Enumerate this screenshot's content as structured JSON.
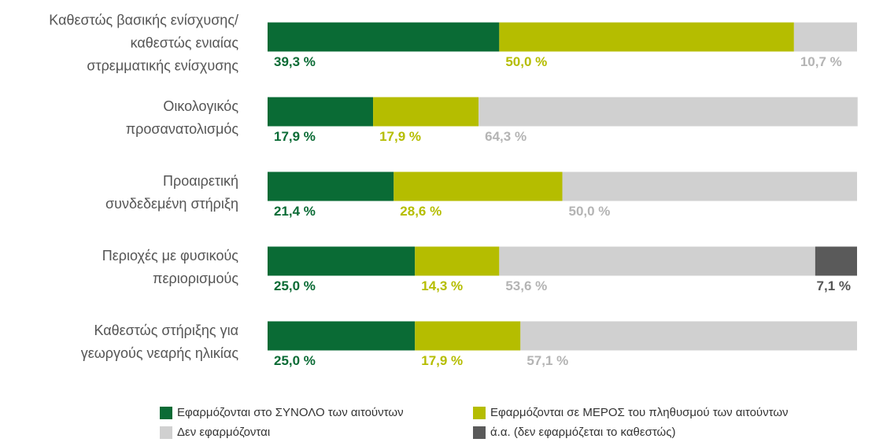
{
  "chart_data": {
    "type": "stacked_barh",
    "categories": [
      "Καθεστώς βασικής ενίσχυσης/\nκαθεστώς ενιαίας\nστρεμματικής ενίσχυσης",
      "Οικολογικός\nπροσανατολισμός",
      "Προαιρετική\nσυνδεδεμένη στήριξη",
      "Περιοχές με φυσικούς\nπεριορισμούς",
      "Καθεστώς στήριξης για\nγεωργούς νεαρής ηλικίας"
    ],
    "series": [
      {
        "name": "Εφαρμόζονται στο ΣΥΝΟΛΟ των αιτούντων",
        "color": "#0a6b35",
        "label_color": "#0a6b35",
        "values": [
          39.3,
          17.9,
          21.4,
          25.0,
          25.0
        ],
        "value_labels": [
          "39,3 %",
          "17,9 %",
          "21,4 %",
          "25,0 %",
          "25,0 %"
        ]
      },
      {
        "name": "Εφαρμόζονται σε ΜΕΡΟΣ του πληθυσμού των αιτούντων",
        "color": "#b5bd00",
        "label_color": "#b5bd00",
        "values": [
          50.0,
          17.9,
          28.6,
          14.3,
          17.9
        ],
        "value_labels": [
          "50,0 %",
          "17,9 %",
          "28,6 %",
          "14,3 %",
          "17,9 %"
        ]
      },
      {
        "name": "Δεν εφαρμόζονται",
        "color": "#d0d0d0",
        "label_color": "#b4b4b4",
        "values": [
          10.7,
          64.3,
          50.0,
          53.6,
          57.1
        ],
        "value_labels": [
          "10,7 %",
          "64,3 %",
          "50,0 %",
          "53,6 %",
          "57,1 %"
        ]
      },
      {
        "name": "ά.α. (δεν εφαρμόζεται το καθεστώς)",
        "color": "#5a5a5a",
        "label_color": "#555555",
        "values": [
          null,
          null,
          null,
          7.1,
          null
        ],
        "value_labels": [
          null,
          null,
          null,
          "7,1 %",
          null
        ]
      }
    ],
    "xlim": [
      0,
      100
    ]
  }
}
